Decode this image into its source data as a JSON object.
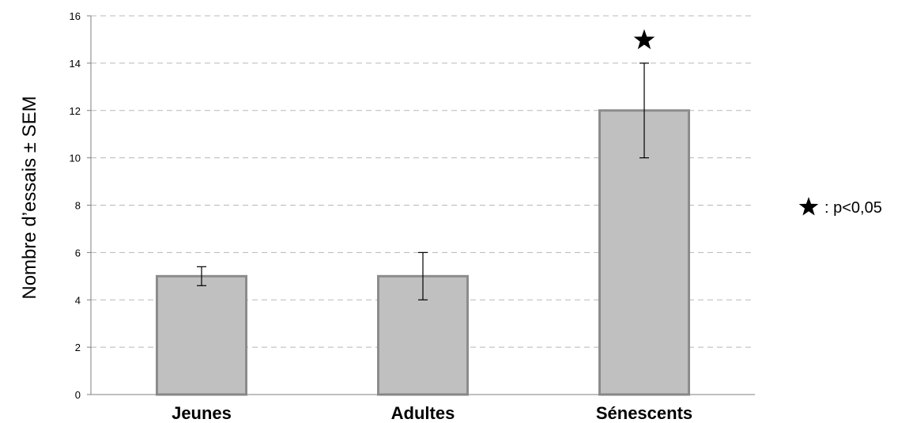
{
  "chart_data": {
    "type": "bar",
    "categories": [
      "Jeunes",
      "Adultes",
      "Sénescents"
    ],
    "values": [
      5,
      5,
      12
    ],
    "error": [
      0.4,
      1,
      2
    ],
    "significance": [
      "",
      "",
      "*"
    ],
    "ylabel": "Nombre d’essais ± SEM",
    "ylim": [
      0,
      16
    ],
    "yticks": [
      0,
      2,
      4,
      6,
      8,
      10,
      12,
      14,
      16
    ],
    "grid": true,
    "colors": {
      "bar_fill": "#c0c0c0",
      "bar_stroke": "#8c8c8c"
    }
  },
  "legend": {
    "symbol": "*",
    "text": ": p<0,05"
  }
}
